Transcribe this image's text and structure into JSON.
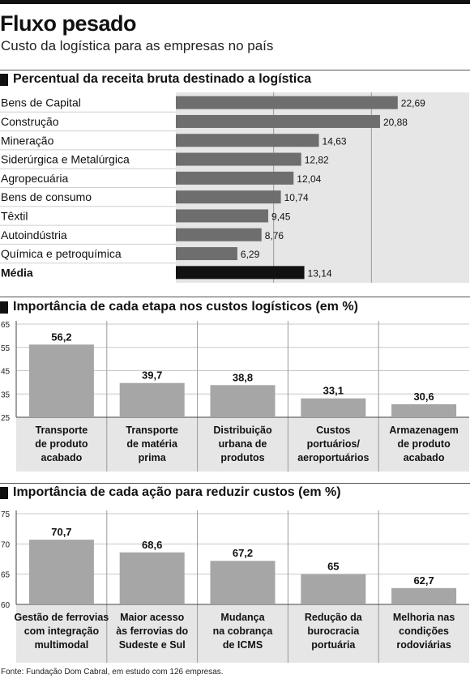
{
  "header": {
    "title": "Fluxo pesado",
    "subtitle": "Custo da logística para as empresas no país"
  },
  "source": "Fonte: Fundação Dom Cabral, em estudo com 126 empresas.",
  "colors": {
    "bar": "#6e6e6e",
    "bar_highlight": "#111111",
    "panel": "#e6e6e6",
    "grid": "#9a9a9a",
    "column_bar": "#a6a6a6"
  },
  "chart_data": [
    {
      "type": "bar",
      "orientation": "horizontal",
      "title": "Percentual da receita bruta destinado a logística",
      "categories": [
        "Bens de Capital",
        "Construção",
        "Mineração",
        "Siderúrgica e Metalúrgica",
        "Agropecuária",
        "Bens de consumo",
        "Têxtil",
        "Autoindústria",
        "Química e petroquímica",
        "Média"
      ],
      "values": [
        22.69,
        20.88,
        14.63,
        12.82,
        12.04,
        10.74,
        9.45,
        8.76,
        6.29,
        13.14
      ],
      "value_labels": [
        "22,69",
        "20,88",
        "14,63",
        "12,82",
        "12,04",
        "10,74",
        "9,45",
        "8,76",
        "6,29",
        "13,14"
      ],
      "highlight": "Média",
      "xlim": [
        0,
        30
      ],
      "grid": true
    },
    {
      "type": "bar",
      "title": "Importância de cada etapa nos custos logísticos (em %)",
      "categories": [
        "Transporte de produto acabado",
        "Transporte de matéria prima",
        "Distribuição urbana de produtos",
        "Custos portuários/ aeroportuários",
        "Armazenagem de produto acabado"
      ],
      "category_lines": [
        [
          "Transporte",
          "de produto",
          "acabado"
        ],
        [
          "Transporte",
          "de matéria",
          "prima"
        ],
        [
          "Distribuição",
          "urbana de",
          "produtos"
        ],
        [
          "Custos",
          "portuários/",
          "aeroportuários"
        ],
        [
          "Armazenagem",
          "de produto",
          "acabado"
        ]
      ],
      "values": [
        56.2,
        39.7,
        38.8,
        33.1,
        30.6
      ],
      "value_labels": [
        "56,2",
        "39,7",
        "38,8",
        "33,1",
        "30,6"
      ],
      "yticks": [
        25,
        35,
        45,
        55,
        65
      ],
      "ylim": [
        25,
        65
      ],
      "grid": true
    },
    {
      "type": "bar",
      "title": "Importância de cada ação para reduzir custos (em %)",
      "categories": [
        "Gestão de ferrovias com integração multimodal",
        "Maior acesso às ferrovias do Sudeste e Sul",
        "Mudança na cobrança de ICMS",
        "Redução da burocracia portuária",
        "Melhoria nas condições rodoviárias"
      ],
      "category_lines": [
        [
          "Gestão de ferrovias",
          "com integração",
          "multimodal"
        ],
        [
          "Maior acesso",
          "às ferrovias do",
          "Sudeste e Sul"
        ],
        [
          "Mudança",
          "na cobrança",
          "de ICMS"
        ],
        [
          "Redução da",
          "burocracia",
          "portuária"
        ],
        [
          "Melhoria nas",
          "condições",
          "rodoviárias"
        ]
      ],
      "values": [
        70.7,
        68.6,
        67.2,
        65,
        62.7
      ],
      "value_labels": [
        "70,7",
        "68,6",
        "67,2",
        "65",
        "62,7"
      ],
      "yticks": [
        60,
        65,
        70,
        75
      ],
      "ylim": [
        60,
        75
      ],
      "grid": true
    }
  ]
}
